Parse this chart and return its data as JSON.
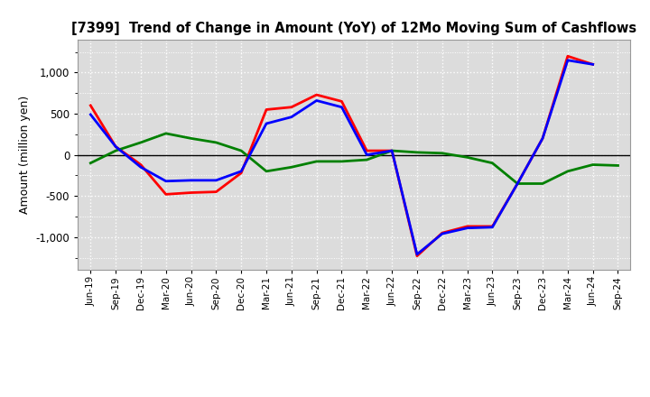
{
  "title": "[7399]  Trend of Change in Amount (YoY) of 12Mo Moving Sum of Cashflows",
  "ylabel": "Amount (million yen)",
  "background_color": "#ffffff",
  "plot_bg_color": "#dcdcdc",
  "grid_color": "#ffffff",
  "x_labels": [
    "Jun-19",
    "Sep-19",
    "Dec-19",
    "Mar-20",
    "Jun-20",
    "Sep-20",
    "Dec-20",
    "Mar-21",
    "Jun-21",
    "Sep-21",
    "Dec-21",
    "Mar-22",
    "Jun-22",
    "Sep-22",
    "Dec-22",
    "Mar-23",
    "Jun-23",
    "Sep-23",
    "Dec-23",
    "Mar-24",
    "Jun-24",
    "Sep-24"
  ],
  "operating": [
    600,
    100,
    -120,
    -480,
    -460,
    -450,
    -220,
    550,
    580,
    730,
    650,
    50,
    50,
    -1230,
    -950,
    -870,
    -870,
    -350,
    200,
    1200,
    1100,
    null
  ],
  "investing": [
    -100,
    50,
    150,
    260,
    200,
    150,
    50,
    -200,
    -150,
    -80,
    -80,
    -60,
    50,
    30,
    20,
    -30,
    -100,
    -350,
    -350,
    -200,
    -120,
    -130
  ],
  "free": [
    490,
    100,
    -150,
    -320,
    -310,
    -310,
    -200,
    380,
    460,
    660,
    580,
    0,
    50,
    -1210,
    -960,
    -890,
    -880,
    -350,
    200,
    1150,
    1100,
    null
  ],
  "operating_color": "#ff0000",
  "investing_color": "#008000",
  "free_color": "#0000ff",
  "ylim": [
    -1400,
    1400
  ],
  "yticks": [
    -1000,
    -500,
    0,
    500,
    1000
  ]
}
